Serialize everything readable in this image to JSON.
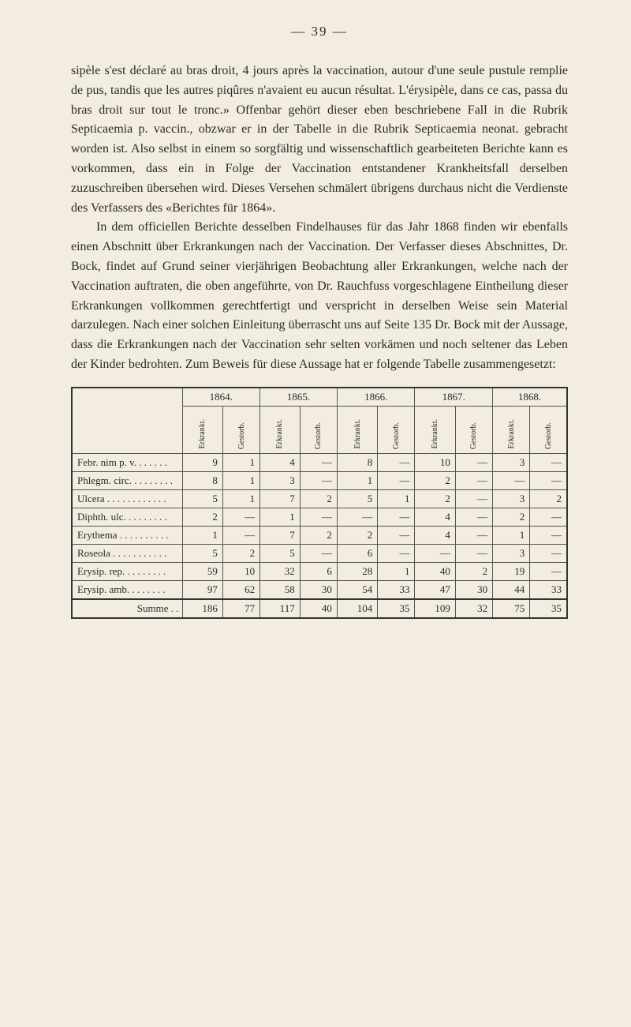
{
  "page_number": "— 39 —",
  "paragraph1": "sipèle s'est déclaré au bras droit, 4 jours après la vaccination, autour d'une seule pustule remplie de pus, tandis que les autres piqûres n'avaient eu aucun résultat. L'érysipèle, dans ce cas, passa du bras droit sur tout le tronc.» Offenbar gehört dieser eben beschriebene Fall in die Rubrik Septicaemia p. vaccin., obzwar er in der Tabelle in die Rubrik Septicaemia neonat. gebracht worden ist. Also selbst in einem so sorgfältig und wissenschaftlich gearbeiteten Berichte kann es vorkommen, dass ein in Folge der Vaccination entstandener Krankheitsfall derselben zuzuschreiben übersehen wird. Dieses Versehen schmälert übrigens durchaus nicht die Verdienste des Verfassers des «Berichtes für 1864».",
  "paragraph2": "In dem officiellen Berichte desselben Findelhauses für das Jahr 1868 finden wir ebenfalls einen Abschnitt über Erkrankungen nach der Vaccination. Der Verfasser dieses Abschnittes, Dr. Bock, findet auf Grund seiner vierjährigen Beobachtung aller Erkrankungen, welche nach der Vaccination auftraten, die oben angeführte, von Dr. Rauchfuss vorgeschlagene Eintheilung dieser Erkrankungen vollkommen gerechtfertigt und verspricht in derselben Weise sein Material darzulegen. Nach einer solchen Einleitung überrascht uns auf Seite 135 Dr. Bock mit der Aussage, dass die Erkrankungen nach der Vaccination sehr selten vorkämen und noch seltener das Leben der Kinder bedrohten. Zum Beweis für diese Aussage hat er folgende Tabelle zusammengesetzt:",
  "table": {
    "years": [
      "1864.",
      "1865.",
      "1866.",
      "1867.",
      "1868."
    ],
    "subheaders": [
      "Erkrankt.",
      "Gestorb."
    ],
    "rows": [
      {
        "label": "Febr. nim p. v. . . . . . .",
        "cells": [
          "9",
          "1",
          "4",
          "—",
          "8",
          "—",
          "10",
          "—",
          "3",
          "—"
        ]
      },
      {
        "label": "Phlegm. circ. . . . . . . . .",
        "cells": [
          "8",
          "1",
          "3",
          "—",
          "1",
          "—",
          "2",
          "—",
          "—",
          "—"
        ]
      },
      {
        "label": "Ulcera . . . . . . . . . . . .",
        "cells": [
          "5",
          "1",
          "7",
          "2",
          "5",
          "1",
          "2",
          "—",
          "3",
          "2"
        ]
      },
      {
        "label": "Diphth. ulc. . . . . . . . .",
        "cells": [
          "2",
          "—",
          "1",
          "—",
          "—",
          "—",
          "4",
          "—",
          "2",
          "—"
        ]
      },
      {
        "label": "Erythema . . . . . . . . . .",
        "cells": [
          "1",
          "—",
          "7",
          "2",
          "2",
          "—",
          "4",
          "—",
          "1",
          "—"
        ]
      },
      {
        "label": "Roseola . . . . . . . . . . .",
        "cells": [
          "5",
          "2",
          "5",
          "—",
          "6",
          "—",
          "—",
          "—",
          "3",
          "—"
        ]
      },
      {
        "label": "Erysip. rep. . . . . . . . .",
        "cells": [
          "59",
          "10",
          "32",
          "6",
          "28",
          "1",
          "40",
          "2",
          "19",
          "—"
        ]
      },
      {
        "label": "Erysip. amb. . . . . . . .",
        "cells": [
          "97",
          "62",
          "58",
          "30",
          "54",
          "33",
          "47",
          "30",
          "44",
          "33"
        ]
      }
    ],
    "sum": {
      "label": "Summe . .",
      "cells": [
        "186",
        "77",
        "117",
        "40",
        "104",
        "35",
        "109",
        "32",
        "75",
        "35"
      ]
    }
  }
}
